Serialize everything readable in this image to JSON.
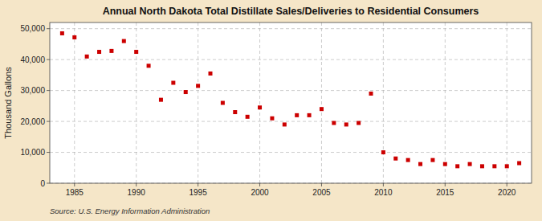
{
  "chart_data": {
    "type": "scatter",
    "title": "Annual North Dakota Total Distillate Sales/Deliveries to Residential Consumers",
    "y_label": "Thousand Gallons",
    "source": "Source: U.S. Energy Information Administration",
    "color": "#cc0000",
    "marker": "square",
    "grid": true,
    "xlim": [
      1983,
      2022
    ],
    "ylim": [
      0,
      52000
    ],
    "xticks": [
      1985,
      1990,
      1995,
      2000,
      2005,
      2010,
      2015,
      2020
    ],
    "yticks": [
      0,
      {
        "value": 10000,
        "label": "10,000"
      },
      {
        "value": 20000,
        "label": "20,000"
      },
      {
        "value": 30000,
        "label": "30,000"
      },
      {
        "value": 40000,
        "label": "40,000"
      },
      {
        "value": 50000,
        "label": "50,000"
      }
    ],
    "x": [
      1984,
      1985,
      1986,
      1987,
      1988,
      1989,
      1990,
      1991,
      1992,
      1993,
      1994,
      1995,
      1996,
      1997,
      1998,
      1999,
      2000,
      2001,
      2002,
      2003,
      2004,
      2005,
      2006,
      2007,
      2008,
      2009,
      2010,
      2011,
      2012,
      2013,
      2014,
      2015,
      2016,
      2017,
      2018,
      2019,
      2020,
      2021
    ],
    "values": [
      48500,
      47200,
      41000,
      42500,
      42800,
      46000,
      42500,
      38000,
      27000,
      32500,
      29500,
      31500,
      35500,
      26000,
      23000,
      21500,
      24500,
      21000,
      19000,
      22000,
      22000,
      24000,
      19500,
      19000,
      19500,
      29000,
      10000,
      8000,
      7500,
      6200,
      7500,
      6200,
      5500,
      6200,
      5500,
      5500,
      5500,
      6500
    ]
  }
}
